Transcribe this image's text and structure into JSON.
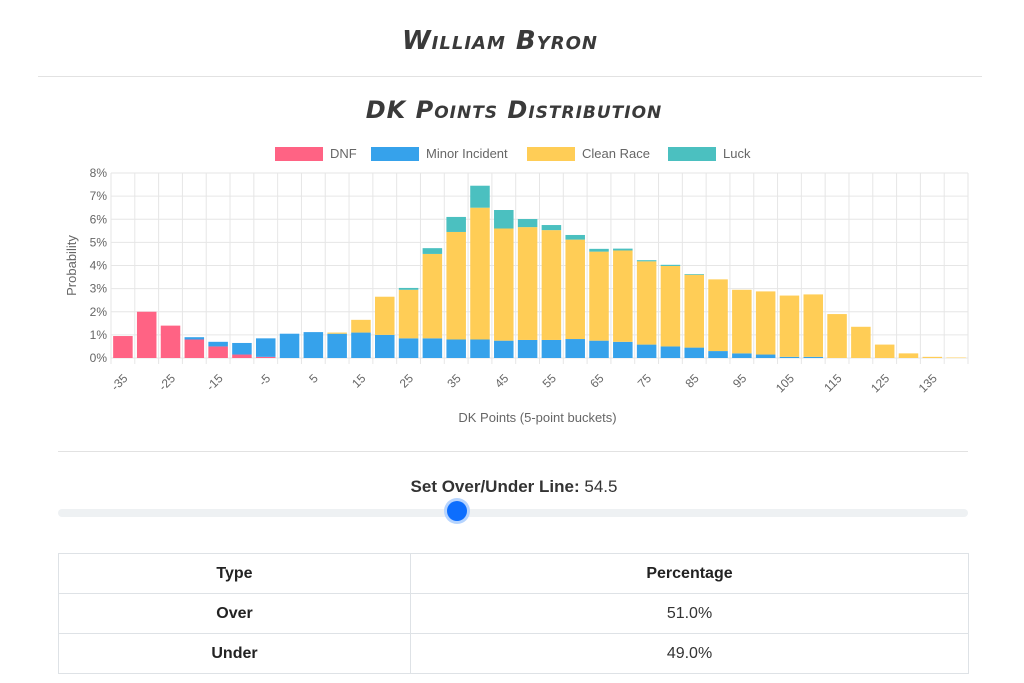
{
  "driver_name": "William Byron",
  "chart_title": "DK Points Distribution",
  "slider": {
    "label": "Set Over/Under Line:",
    "value": "54.5"
  },
  "table": {
    "headers": [
      "Type",
      "Percentage"
    ],
    "rows": [
      {
        "type": "Over",
        "percentage": "51.0%"
      },
      {
        "type": "Under",
        "percentage": "49.0%"
      }
    ]
  },
  "chart_data": {
    "type": "bar",
    "stacked": true,
    "xlabel": "DK Points (5-point buckets)",
    "ylabel": "Probability",
    "ylim": [
      0,
      8
    ],
    "yticks": [
      "0%",
      "1%",
      "2%",
      "3%",
      "4%",
      "5%",
      "6%",
      "7%",
      "8%"
    ],
    "legend_position": "top-center",
    "grid": true,
    "categories": [
      "-35",
      "-30",
      "-25",
      "-20",
      "-15",
      "-10",
      "-5",
      "0",
      "5",
      "10",
      "15",
      "20",
      "25",
      "30",
      "35",
      "40",
      "45",
      "50",
      "55",
      "60",
      "65",
      "70",
      "75",
      "80",
      "85",
      "90",
      "95",
      "100",
      "105",
      "110",
      "115",
      "120",
      "125",
      "130",
      "135",
      "140"
    ],
    "tick_labels": [
      "-35",
      "",
      "-25",
      "",
      "-15",
      "",
      "-5",
      "",
      "5",
      "",
      "15",
      "",
      "25",
      "",
      "35",
      "",
      "45",
      "",
      "55",
      "",
      "65",
      "",
      "75",
      "",
      "85",
      "",
      "95",
      "",
      "105",
      "",
      "115",
      "",
      "125",
      "",
      "135",
      ""
    ],
    "series": [
      {
        "name": "DNF",
        "color": "#ff6384",
        "values": [
          0.95,
          2.0,
          1.4,
          0.8,
          0.5,
          0.15,
          0.05,
          0,
          0,
          0,
          0,
          0,
          0,
          0,
          0,
          0,
          0,
          0,
          0,
          0,
          0,
          0,
          0,
          0,
          0,
          0,
          0,
          0,
          0,
          0,
          0,
          0,
          0,
          0,
          0,
          0
        ]
      },
      {
        "name": "Minor Incident",
        "color": "#36a2eb",
        "values": [
          0,
          0,
          0,
          0.1,
          0.2,
          0.5,
          0.8,
          1.05,
          1.12,
          1.05,
          1.1,
          1.0,
          0.85,
          0.85,
          0.8,
          0.8,
          0.75,
          0.78,
          0.78,
          0.82,
          0.75,
          0.7,
          0.58,
          0.5,
          0.45,
          0.3,
          0.2,
          0.15,
          0.05,
          0.05,
          0,
          0,
          0,
          0,
          0,
          0
        ]
      },
      {
        "name": "Clean Race",
        "color": "#ffcd56",
        "values": [
          0,
          0,
          0,
          0,
          0,
          0,
          0,
          0,
          0,
          0.05,
          0.55,
          1.65,
          2.1,
          3.65,
          4.65,
          5.7,
          4.85,
          4.88,
          4.75,
          4.3,
          3.85,
          3.95,
          3.6,
          3.48,
          3.15,
          3.1,
          2.75,
          2.73,
          2.65,
          2.7,
          1.9,
          1.35,
          0.58,
          0.2,
          0.05,
          0.02
        ]
      },
      {
        "name": "Luck",
        "color": "#4bc0c0",
        "values": [
          0,
          0,
          0,
          0,
          0,
          0,
          0,
          0,
          0,
          0,
          0,
          0,
          0.08,
          0.25,
          0.65,
          0.95,
          0.8,
          0.35,
          0.22,
          0.2,
          0.12,
          0.08,
          0.05,
          0.05,
          0.03,
          0,
          0,
          0,
          0,
          0,
          0,
          0,
          0,
          0,
          0,
          0
        ]
      }
    ]
  }
}
